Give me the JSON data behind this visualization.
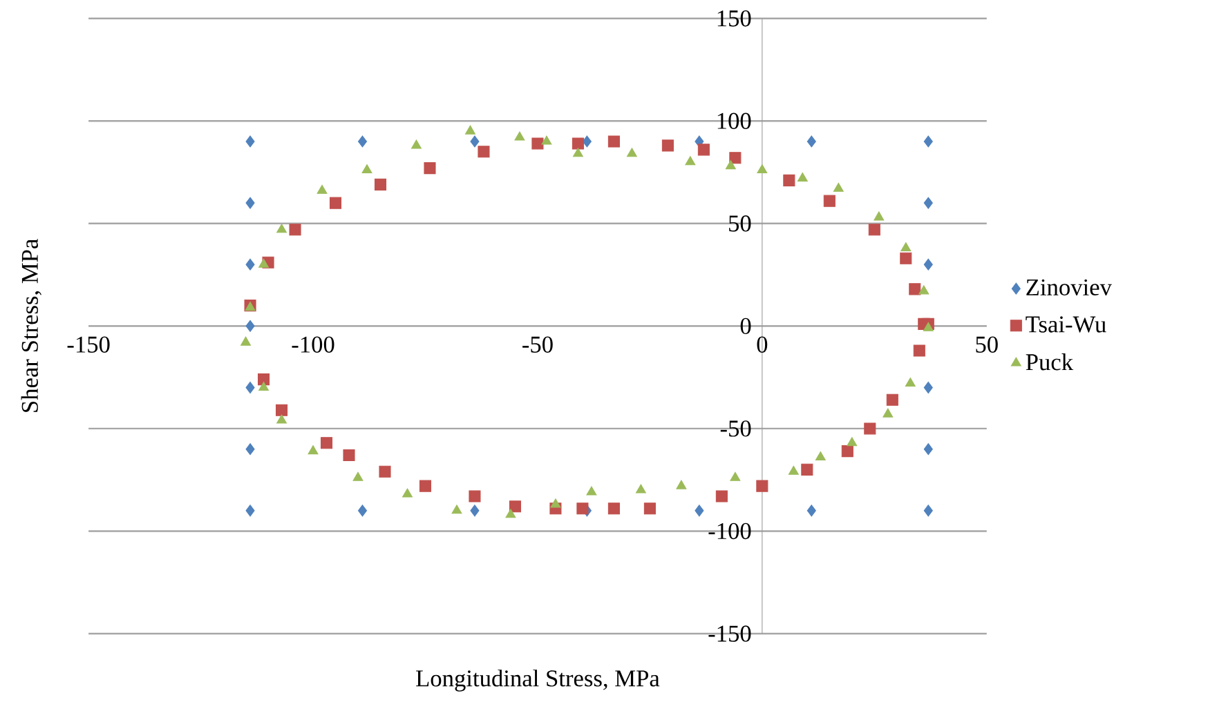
{
  "chart_data": {
    "type": "scatter",
    "xlabel": "Longitudinal Stress, MPa",
    "ylabel": "Shear Stress, MPa",
    "xlim": [
      -150,
      50
    ],
    "xticks": [
      -150,
      -100,
      -50,
      0,
      50
    ],
    "ylim": [
      -150,
      150
    ],
    "yticks": [
      -150,
      -100,
      -50,
      0,
      50,
      100,
      150
    ],
    "grid": "y",
    "legend": "right",
    "series": [
      {
        "name": "Zinoviev",
        "color": "#4f81bd",
        "marker": "diamond",
        "x": [
          -114,
          -114,
          -114,
          -114,
          -114,
          -114,
          -114,
          -89,
          -64,
          -39,
          -14,
          11,
          37,
          37,
          37,
          37,
          37,
          37,
          11,
          -14,
          -39,
          -64,
          -89
        ],
        "values": [
          90,
          60,
          30,
          0,
          -30,
          -60,
          -90,
          -90,
          -90,
          -90,
          -90,
          -90,
          -90,
          -60,
          -30,
          30,
          60,
          90,
          90,
          90,
          90,
          90,
          90
        ]
      },
      {
        "name": "Tsai-Wu",
        "color": "#c0504d",
        "marker": "square",
        "x": [
          -114,
          -110,
          -104,
          -95,
          -85,
          -74,
          -62,
          -50,
          -41,
          -33,
          -21,
          -13,
          -6,
          6,
          15,
          25,
          32,
          34,
          36,
          37,
          35,
          29,
          24,
          19,
          10,
          0,
          -9,
          -25,
          -33,
          -40,
          -46,
          -55,
          -64,
          -75,
          -84,
          -92,
          -97,
          -107,
          -111
        ],
        "values": [
          10,
          31,
          47,
          60,
          69,
          77,
          85,
          89,
          89,
          90,
          88,
          86,
          82,
          71,
          61,
          47,
          33,
          18,
          1,
          1,
          -12,
          -36,
          -50,
          -61,
          -70,
          -78,
          -83,
          -89,
          -89,
          -89,
          -89,
          -88,
          -83,
          -78,
          -71,
          -63,
          -57,
          -41,
          -26
        ]
      },
      {
        "name": "Puck",
        "color": "#9bbb59",
        "marker": "triangle",
        "x": [
          -115,
          -114,
          -111,
          -107,
          -98,
          -88,
          -77,
          -65,
          -54,
          -48,
          -41,
          -29,
          -16,
          -7,
          0,
          9,
          17,
          26,
          32,
          36,
          37,
          33,
          28,
          20,
          13,
          7,
          -6,
          -18,
          -27,
          -38,
          -46,
          -56,
          -68,
          -79,
          -90,
          -100,
          -107,
          -111
        ],
        "values": [
          -8,
          9,
          30,
          47,
          66,
          76,
          88,
          95,
          92,
          90,
          84,
          84,
          80,
          78,
          76,
          72,
          67,
          53,
          38,
          17,
          -1,
          -28,
          -43,
          -57,
          -64,
          -71,
          -74,
          -78,
          -80,
          -81,
          -87,
          -92,
          -90,
          -82,
          -74,
          -61,
          -46,
          -30
        ]
      }
    ]
  }
}
